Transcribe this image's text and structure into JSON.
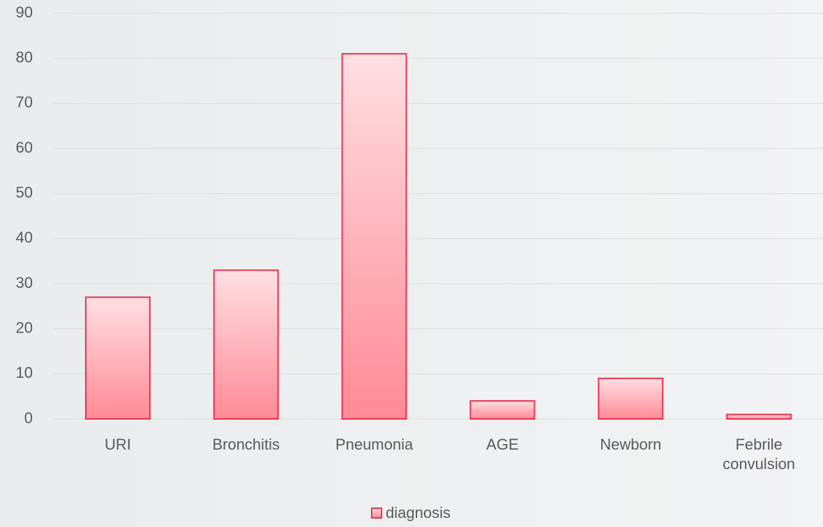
{
  "chart_data": {
    "type": "bar",
    "categories": [
      "URI",
      "Bronchitis",
      "Pneumonia",
      "AGE",
      "Newborn",
      "Febrile convulsion"
    ],
    "series": [
      {
        "name": "diagnosis",
        "color": "#e8314f",
        "values": [
          27,
          33,
          81,
          4,
          9,
          1
        ]
      }
    ],
    "ylim": [
      0,
      90
    ],
    "yticks": [
      0,
      10,
      20,
      30,
      40,
      50,
      60,
      70,
      80,
      90
    ],
    "grid": true,
    "legend": "bottom"
  }
}
